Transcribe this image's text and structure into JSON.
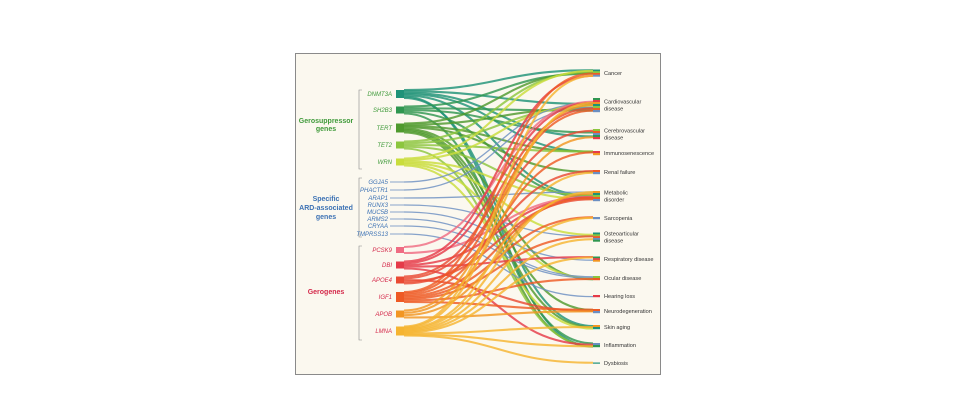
{
  "groups": [
    {
      "id": "gs",
      "label_lines": [
        "Gerosuppressor",
        "genes"
      ],
      "color": "#3f9a3a",
      "genes": [
        {
          "name": "DNMT3A",
          "color": "#1e9278"
        },
        {
          "name": "SH2B3",
          "color": "#2f9650"
        },
        {
          "name": "TERT",
          "color": "#4f9a2e"
        },
        {
          "name": "TET2",
          "color": "#8cc63e"
        },
        {
          "name": "WRN",
          "color": "#c9dd3c"
        }
      ]
    },
    {
      "id": "sp",
      "label_lines": [
        "Specific",
        "ARD-associated",
        "genes"
      ],
      "color": "#3d72b4",
      "genes": [
        {
          "name": "GGJA5",
          "color": "#6b8fc2"
        },
        {
          "name": "PHACTR1",
          "color": "#6b8fc2"
        },
        {
          "name": "ARAP1",
          "color": "#6b8fc2"
        },
        {
          "name": "RUNX3",
          "color": "#6b8fc2"
        },
        {
          "name": "MUC5B",
          "color": "#6b8fc2"
        },
        {
          "name": "ARMS2",
          "color": "#6b8fc2"
        },
        {
          "name": "CRYAA",
          "color": "#6b8fc2"
        },
        {
          "name": "TMPRSS13",
          "color": "#6b8fc2"
        }
      ]
    },
    {
      "id": "gg",
      "label_lines": [
        "Gerogenes"
      ],
      "color": "#d4294a",
      "genes": [
        {
          "name": "PCSK9",
          "color": "#ef6c83"
        },
        {
          "name": "DBI",
          "color": "#e53b49"
        },
        {
          "name": "APOE4",
          "color": "#e94a33"
        },
        {
          "name": "IGF1",
          "color": "#ee5a25"
        },
        {
          "name": "APOB",
          "color": "#f29622"
        },
        {
          "name": "LMNA",
          "color": "#f5b431"
        }
      ]
    }
  ],
  "diseases": [
    {
      "lines": [
        "Cancer"
      ]
    },
    {
      "lines": [
        "Cardiovascular",
        "disease"
      ]
    },
    {
      "lines": [
        "Cerebrovascular",
        "disease"
      ]
    },
    {
      "lines": [
        "Immunosenescence"
      ]
    },
    {
      "lines": [
        "Renal failure"
      ]
    },
    {
      "lines": [
        "Metabolic",
        "disorder"
      ]
    },
    {
      "lines": [
        "Sarcopenia"
      ]
    },
    {
      "lines": [
        "Osteoarticular",
        "disease"
      ]
    },
    {
      "lines": [
        "Respiratory disease"
      ]
    },
    {
      "lines": [
        "Ocular disease"
      ]
    },
    {
      "lines": [
        "Hearing loss"
      ]
    },
    {
      "lines": [
        "Neurodegeneration"
      ]
    },
    {
      "lines": [
        "Skin aging"
      ]
    },
    {
      "lines": [
        "Inflammation"
      ]
    },
    {
      "lines": [
        "Dysbiosis"
      ]
    }
  ],
  "links": [
    [
      "DNMT3A",
      0
    ],
    [
      "DNMT3A",
      1
    ],
    [
      "DNMT3A",
      2
    ],
    [
      "DNMT3A",
      3
    ],
    [
      "DNMT3A",
      5
    ],
    [
      "DNMT3A",
      13
    ],
    [
      "DNMT3A",
      12
    ],
    [
      "SH2B3",
      0
    ],
    [
      "SH2B3",
      1
    ],
    [
      "SH2B3",
      2
    ],
    [
      "SH2B3",
      5
    ],
    [
      "SH2B3",
      13
    ],
    [
      "TERT",
      0
    ],
    [
      "TERT",
      1
    ],
    [
      "TERT",
      3
    ],
    [
      "TERT",
      4
    ],
    [
      "TERT",
      9
    ],
    [
      "TERT",
      11
    ],
    [
      "TERT",
      12
    ],
    [
      "TERT",
      13
    ],
    [
      "TET2",
      0
    ],
    [
      "TET2",
      1
    ],
    [
      "TET2",
      3
    ],
    [
      "TET2",
      5
    ],
    [
      "TET2",
      13
    ],
    [
      "WRN",
      0
    ],
    [
      "WRN",
      1
    ],
    [
      "WRN",
      5
    ],
    [
      "WRN",
      7
    ],
    [
      "WRN",
      9
    ],
    [
      "WRN",
      12
    ],
    [
      "GGJA5",
      1
    ],
    [
      "PHACTR1",
      1
    ],
    [
      "ARAP1",
      5
    ],
    [
      "RUNX3",
      7
    ],
    [
      "MUC5B",
      8
    ],
    [
      "ARMS2",
      9
    ],
    [
      "CRYAA",
      9
    ],
    [
      "TMPRSS13",
      10
    ],
    [
      "PCSK9",
      1
    ],
    [
      "PCSK9",
      5
    ],
    [
      "DBI",
      0
    ],
    [
      "DBI",
      1
    ],
    [
      "DBI",
      5
    ],
    [
      "DBI",
      8
    ],
    [
      "DBI",
      13
    ],
    [
      "APOE4",
      1
    ],
    [
      "APOE4",
      2
    ],
    [
      "APOE4",
      11
    ],
    [
      "APOE4",
      5
    ],
    [
      "APOE4",
      4
    ],
    [
      "IGF1",
      0
    ],
    [
      "IGF1",
      1
    ],
    [
      "IGF1",
      3
    ],
    [
      "IGF1",
      5
    ],
    [
      "IGF1",
      6
    ],
    [
      "IGF1",
      7
    ],
    [
      "IGF1",
      9
    ],
    [
      "IGF1",
      11
    ],
    [
      "APOB",
      1
    ],
    [
      "APOB",
      2
    ],
    [
      "APOB",
      5
    ],
    [
      "APOB",
      11
    ],
    [
      "LMNA",
      0
    ],
    [
      "LMNA",
      1
    ],
    [
      "LMNA",
      4
    ],
    [
      "LMNA",
      5
    ],
    [
      "LMNA",
      6
    ],
    [
      "LMNA",
      7
    ],
    [
      "LMNA",
      8
    ],
    [
      "LMNA",
      12
    ],
    [
      "LMNA",
      13
    ],
    [
      "LMNA",
      14
    ]
  ]
}
